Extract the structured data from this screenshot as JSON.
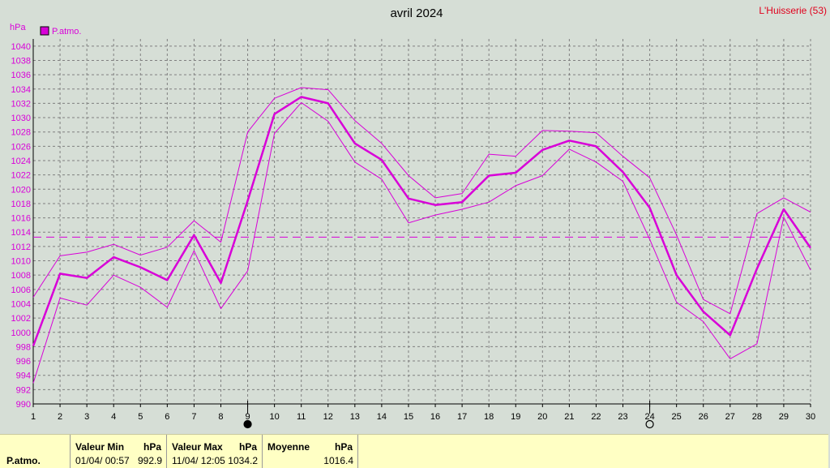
{
  "chart_data": {
    "type": "line",
    "title": "avril 2024",
    "station": "L'Huisserie (53)",
    "ylabel": "hPa",
    "ylim": [
      990,
      1041
    ],
    "yticks": [
      990,
      992,
      994,
      996,
      998,
      1000,
      1002,
      1004,
      1006,
      1008,
      1010,
      1012,
      1014,
      1016,
      1018,
      1020,
      1022,
      1024,
      1026,
      1028,
      1030,
      1032,
      1034,
      1036,
      1038,
      1040
    ],
    "x": [
      1,
      2,
      3,
      4,
      5,
      6,
      7,
      8,
      9,
      10,
      11,
      12,
      13,
      14,
      15,
      16,
      17,
      18,
      19,
      20,
      21,
      22,
      23,
      24,
      25,
      26,
      27,
      28,
      29,
      30
    ],
    "legend": "P.atmo.",
    "grid": true,
    "average": 1013.3,
    "moon_markers": [
      {
        "day": 9,
        "phase": "new"
      },
      {
        "day": 24,
        "phase": "full"
      }
    ],
    "series": [
      {
        "role": "mean",
        "values": [
          998.1,
          1008.2,
          1007.6,
          1010.5,
          1009.1,
          1007.3,
          1013.6,
          1006.9,
          1018.4,
          1030.5,
          1032.9,
          1032.0,
          1026.4,
          1024.1,
          1018.7,
          1017.8,
          1018.2,
          1021.9,
          1022.3,
          1025.5,
          1026.8,
          1026.0,
          1022.4,
          1017.4,
          1008.0,
          1002.9,
          999.6,
          1008.9,
          1017.2,
          1011.8
        ],
        "color": "#d800d8"
      },
      {
        "role": "max",
        "values": [
          1004.9,
          1010.7,
          1011.2,
          1012.3,
          1010.8,
          1011.9,
          1015.6,
          1012.6,
          1028.0,
          1032.7,
          1034.2,
          1033.9,
          1029.6,
          1026.4,
          1021.9,
          1018.8,
          1019.4,
          1024.9,
          1024.6,
          1028.2,
          1028.1,
          1027.9,
          1024.6,
          1021.6,
          1013.6,
          1004.6,
          1002.6,
          1016.6,
          1018.8,
          1016.8
        ],
        "color": "#d800d8"
      },
      {
        "role": "min",
        "values": [
          992.9,
          1004.8,
          1003.8,
          1008.0,
          1006.3,
          1003.5,
          1011.4,
          1003.3,
          1008.6,
          1027.8,
          1032.1,
          1029.5,
          1023.8,
          1021.4,
          1015.3,
          1016.4,
          1017.2,
          1018.2,
          1020.5,
          1021.9,
          1025.6,
          1023.8,
          1021.1,
          1013.0,
          1004.2,
          1001.5,
          996.3,
          998.4,
          1016.1,
          1008.7
        ],
        "color": "#d800d8"
      }
    ]
  },
  "stats": {
    "row_label": "P.atmo.",
    "min_header": "Valeur Min",
    "min_unit": "hPa",
    "min_time": "01/04/  00:57",
    "min_value": "992.9",
    "max_header": "Valeur Max",
    "max_unit": "hPa",
    "max_time": "11/04/  12:05",
    "max_value": "1034.2",
    "avg_header": "Moyenne",
    "avg_unit": "hPa",
    "avg_value": "1016.4"
  }
}
